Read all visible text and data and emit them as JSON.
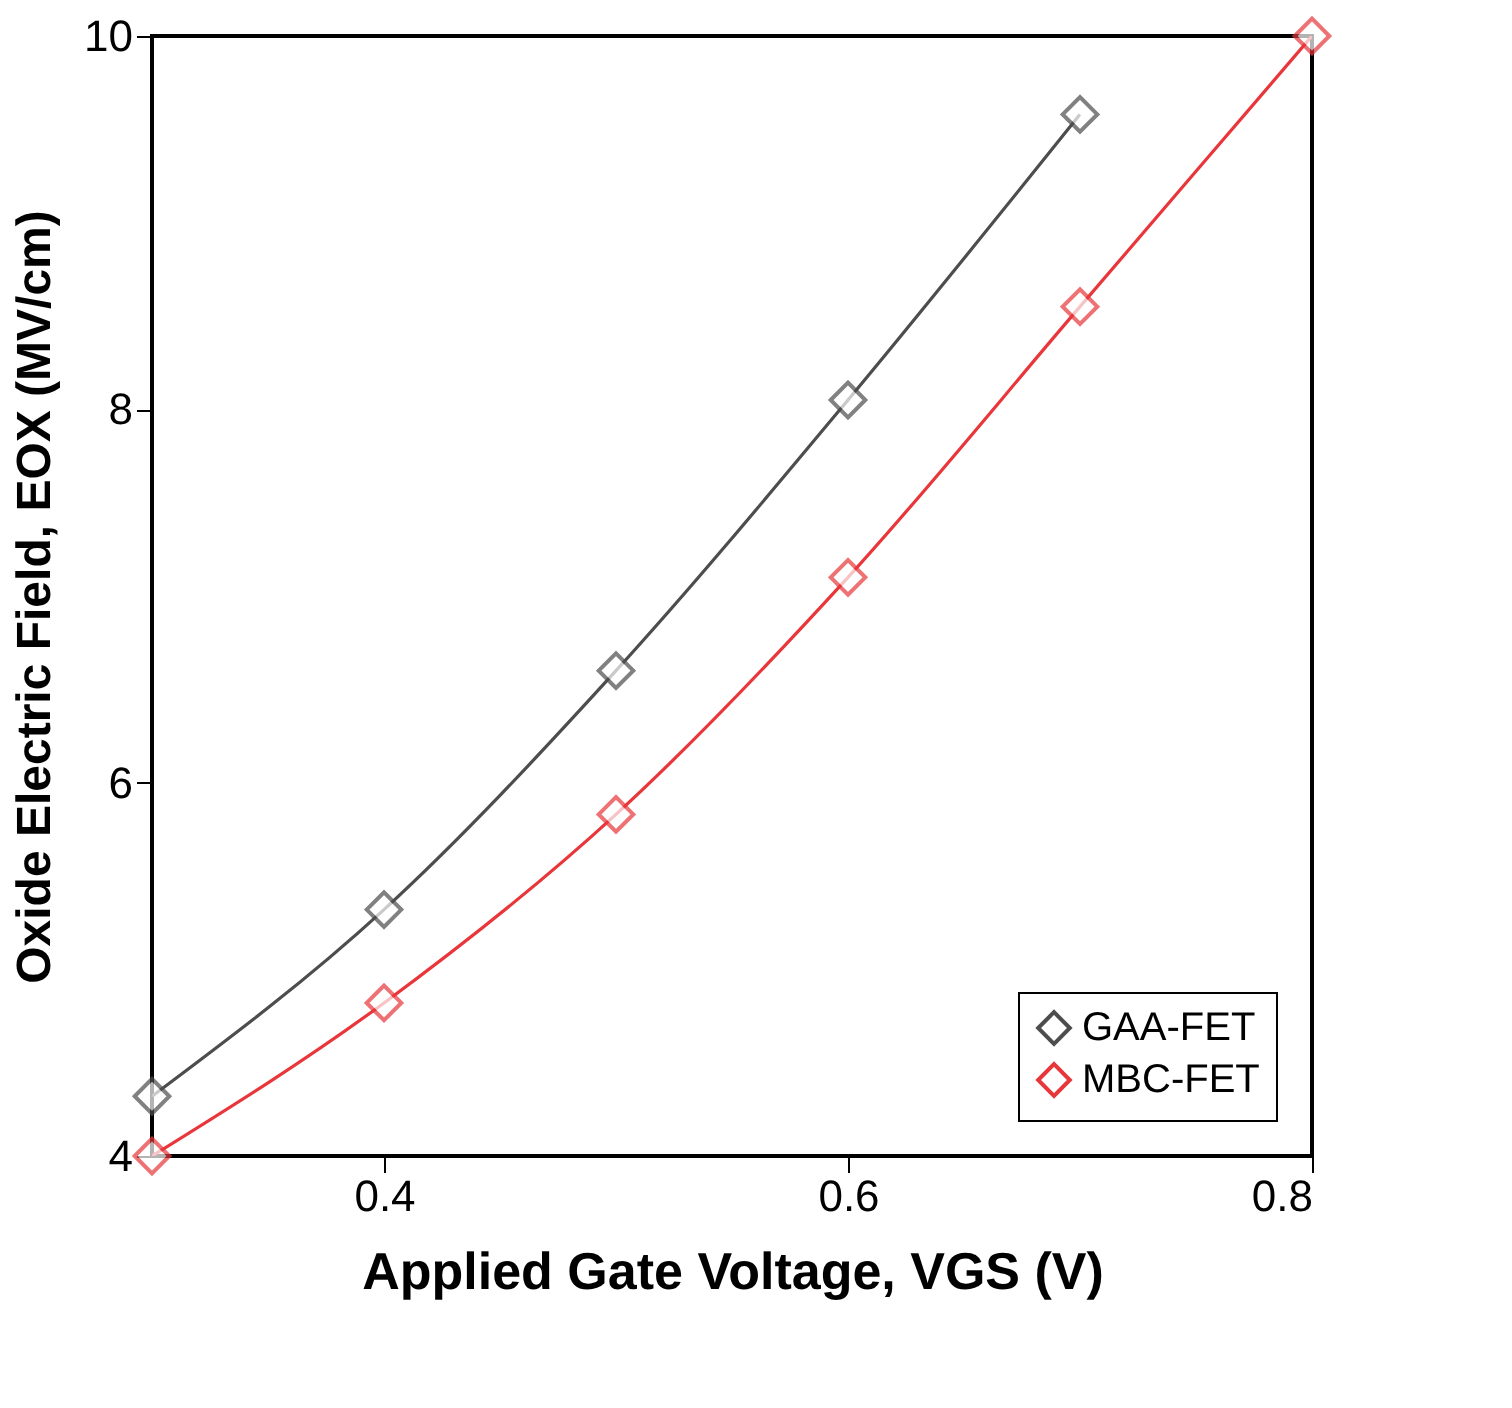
{
  "chart_data": {
    "type": "line",
    "xlabel": "Applied Gate Voltage, VGS (V)",
    "ylabel": "Oxide Electric Field, EOX (MV/cm)",
    "x": [
      0.3,
      0.4,
      0.5,
      0.6,
      0.7,
      0.8
    ],
    "series": [
      {
        "name": "GAA-FET",
        "color": "#4d4d4d",
        "values": [
          4.32,
          5.32,
          6.6,
          8.05,
          9.58,
          null
        ]
      },
      {
        "name": "MBC-FET",
        "color": "#e8363a",
        "values": [
          4.0,
          4.82,
          5.83,
          7.1,
          8.55,
          10.0
        ]
      }
    ],
    "xlim": [
      0.3,
      0.8
    ],
    "xticks": [
      0.4,
      0.6,
      0.8
    ],
    "ylim": [
      4,
      10
    ],
    "yticks": [
      4,
      6,
      8,
      10
    ],
    "grid": false,
    "legend": "bottom right",
    "marker": "diamond",
    "line_style": "solid"
  }
}
